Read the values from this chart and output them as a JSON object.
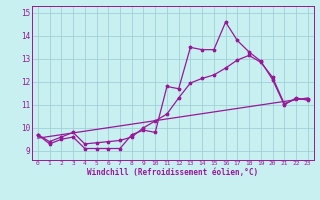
{
  "xlabel": "Windchill (Refroidissement éolien,°C)",
  "ylabel": "",
  "bg_color": "#c8f0f0",
  "grid_color": "#a0d0d8",
  "line_color": "#991899",
  "xlim": [
    -0.5,
    23.5
  ],
  "ylim": [
    8.6,
    15.3
  ],
  "yticks": [
    9,
    10,
    11,
    12,
    13,
    14,
    15
  ],
  "xticks": [
    0,
    1,
    2,
    3,
    4,
    5,
    6,
    7,
    8,
    9,
    10,
    11,
    12,
    13,
    14,
    15,
    16,
    17,
    18,
    19,
    20,
    21,
    22,
    23
  ],
  "series1_x": [
    0,
    1,
    2,
    3,
    4,
    5,
    6,
    7,
    8,
    9,
    10,
    11,
    12,
    13,
    14,
    15,
    16,
    17,
    18,
    19,
    20,
    21,
    22,
    23
  ],
  "series1_y": [
    9.7,
    9.3,
    9.5,
    9.6,
    9.1,
    9.1,
    9.1,
    9.1,
    9.7,
    9.9,
    9.8,
    11.8,
    11.7,
    13.5,
    13.4,
    13.4,
    14.6,
    13.8,
    13.3,
    12.9,
    12.1,
    11.0,
    11.3,
    11.2
  ],
  "series2_x": [
    0,
    1,
    2,
    3,
    4,
    5,
    6,
    7,
    8,
    9,
    10,
    11,
    12,
    13,
    14,
    15,
    16,
    17,
    18,
    19,
    20,
    21,
    22,
    23
  ],
  "series2_y": [
    9.7,
    9.4,
    9.6,
    9.8,
    9.3,
    9.35,
    9.4,
    9.45,
    9.6,
    10.0,
    10.3,
    10.6,
    11.3,
    11.95,
    12.15,
    12.3,
    12.6,
    12.95,
    13.15,
    12.85,
    12.2,
    11.05,
    11.25,
    11.25
  ],
  "series3_x": [
    0,
    23
  ],
  "series3_y": [
    9.55,
    11.3
  ]
}
